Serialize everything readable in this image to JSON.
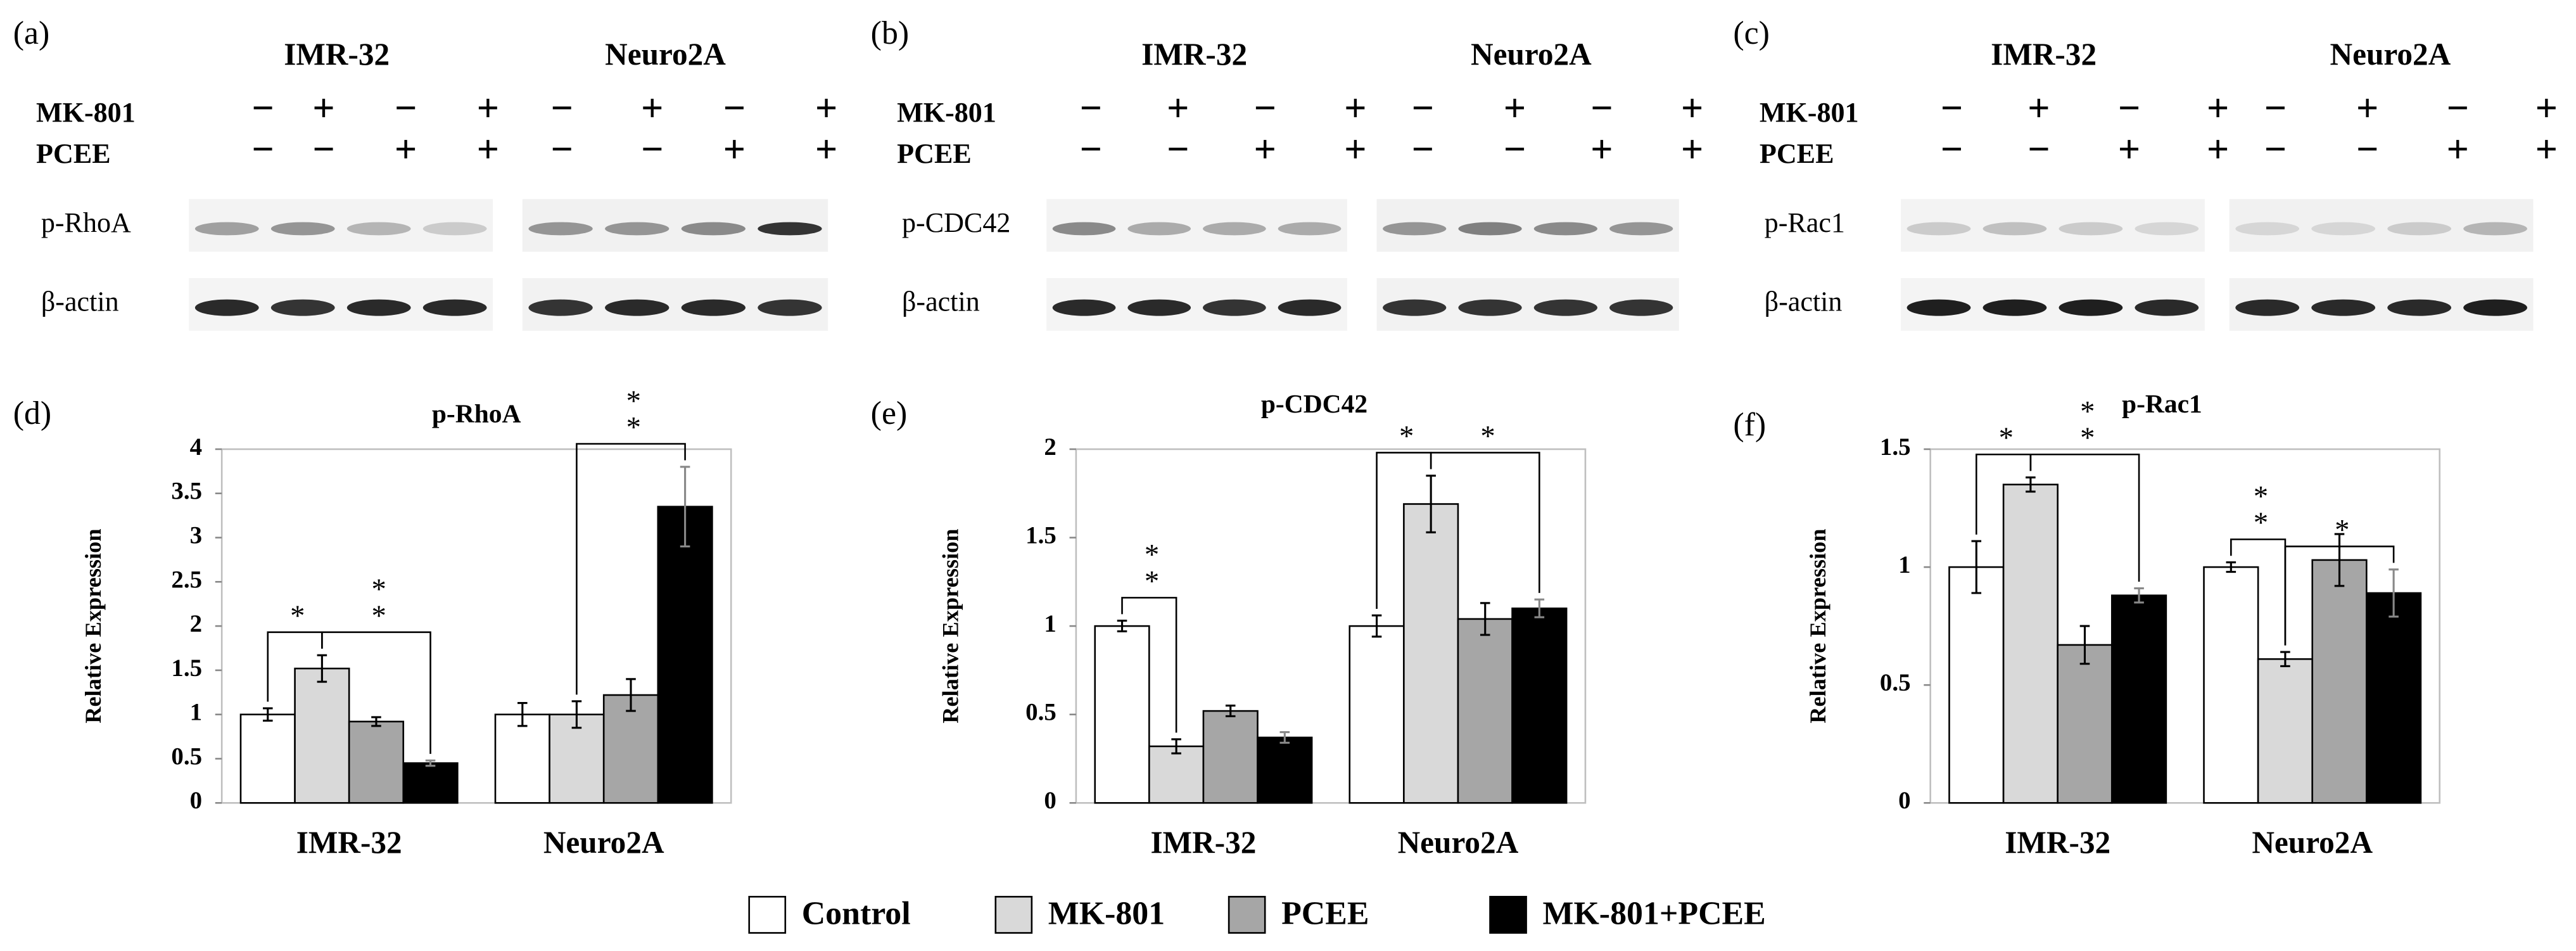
{
  "blots": [
    {
      "panel_label": "(a)",
      "cell_lines": [
        "IMR-32",
        "Neuro2A"
      ],
      "treatments": [
        {
          "label": "MK-801",
          "signs": [
            "−",
            "+",
            "−",
            "+",
            "−",
            "+",
            "−",
            "+"
          ]
        },
        {
          "label": "PCEE",
          "signs": [
            "−",
            "−",
            "+",
            "+",
            "−",
            "−",
            "+",
            "+"
          ]
        }
      ],
      "rows": [
        "p-RhoA",
        "β-actin"
      ]
    },
    {
      "panel_label": "(b)",
      "cell_lines": [
        "IMR-32",
        "Neuro2A"
      ],
      "treatments": [
        {
          "label": "MK-801",
          "signs": [
            "−",
            "+",
            "−",
            "+",
            "−",
            "+",
            "−",
            "+"
          ]
        },
        {
          "label": "PCEE",
          "signs": [
            "−",
            "−",
            "+",
            "+",
            "−",
            "−",
            "+",
            "+"
          ]
        }
      ],
      "rows": [
        "p-CDC42",
        "β-actin"
      ]
    },
    {
      "panel_label": "(c)",
      "cell_lines": [
        "IMR-32",
        "Neuro2A"
      ],
      "treatments": [
        {
          "label": "MK-801",
          "signs": [
            "−",
            "+",
            "−",
            "+",
            "−",
            "+",
            "−",
            "+"
          ]
        },
        {
          "label": "PCEE",
          "signs": [
            "−",
            "−",
            "+",
            "+",
            "−",
            "−",
            "+",
            "+"
          ]
        }
      ],
      "rows": [
        "p-Rac1",
        "β-actin"
      ]
    }
  ],
  "chart_data": [
    {
      "type": "bar",
      "panel_label": "(d)",
      "title": "p-RhoA",
      "y_label": "Relative Expression",
      "categories": [
        "IMR-32",
        "Neuro2A"
      ],
      "series": [
        {
          "values": [
            1.0,
            1.0
          ],
          "errors": [
            0.07,
            0.13
          ]
        },
        {
          "values": [
            1.52,
            1.0
          ],
          "errors": [
            0.15,
            0.15
          ]
        },
        {
          "values": [
            0.92,
            1.22
          ],
          "errors": [
            0.05,
            0.18
          ]
        },
        {
          "values": [
            0.45,
            3.35
          ],
          "errors": [
            0.03,
            0.45
          ]
        }
      ],
      "ylim": [
        0,
        4
      ],
      "yticks": [
        0,
        0.5,
        1,
        1.5,
        2,
        2.5,
        3,
        3.5,
        4
      ],
      "significance": [
        {
          "category": 0,
          "pair": [
            0,
            1
          ],
          "label": "*"
        },
        {
          "category": 0,
          "pair": [
            1,
            3
          ],
          "label": "**"
        },
        {
          "category": 1,
          "pair": [
            1,
            3
          ],
          "label": "**"
        }
      ]
    },
    {
      "type": "bar",
      "panel_label": "(e)",
      "title": "p-CDC42",
      "y_label": "Relative Expression",
      "categories": [
        "IMR-32",
        "Neuro2A"
      ],
      "series": [
        {
          "values": [
            1.0,
            1.0
          ],
          "errors": [
            0.03,
            0.06
          ]
        },
        {
          "values": [
            0.32,
            1.69
          ],
          "errors": [
            0.04,
            0.16
          ]
        },
        {
          "values": [
            0.52,
            1.04
          ],
          "errors": [
            0.03,
            0.09
          ]
        },
        {
          "values": [
            0.37,
            1.1
          ],
          "errors": [
            0.03,
            0.05
          ]
        }
      ],
      "ylim": [
        0,
        2
      ],
      "yticks": [
        0,
        0.5,
        1,
        1.5,
        2
      ],
      "significance": [
        {
          "category": 0,
          "pair": [
            0,
            1
          ],
          "label": "**"
        },
        {
          "category": 1,
          "pair": [
            0,
            1
          ],
          "label": "*"
        },
        {
          "category": 1,
          "pair": [
            1,
            3
          ],
          "label": "*"
        }
      ]
    },
    {
      "type": "bar",
      "panel_label": "(f)",
      "title": "p-Rac1",
      "y_label": "Relative Expression",
      "categories": [
        "IMR-32",
        "Neuro2A"
      ],
      "series": [
        {
          "values": [
            1.0,
            1.0
          ],
          "errors": [
            0.11,
            0.02
          ]
        },
        {
          "values": [
            1.35,
            0.61
          ],
          "errors": [
            0.03,
            0.03
          ]
        },
        {
          "values": [
            0.67,
            1.03
          ],
          "errors": [
            0.08,
            0.11
          ]
        },
        {
          "values": [
            0.88,
            0.89
          ],
          "errors": [
            0.03,
            0.1
          ]
        }
      ],
      "ylim": [
        0,
        1.5
      ],
      "yticks": [
        0,
        0.5,
        1,
        1.5
      ],
      "significance": [
        {
          "category": 0,
          "pair": [
            0,
            1
          ],
          "label": "*"
        },
        {
          "category": 0,
          "pair": [
            1,
            3
          ],
          "label": "**"
        },
        {
          "category": 1,
          "pair": [
            0,
            1
          ],
          "label": "**"
        },
        {
          "category": 1,
          "pair": [
            1,
            3
          ],
          "label": "*"
        }
      ]
    }
  ],
  "legend": [
    {
      "name": "Control",
      "color": "#ffffff"
    },
    {
      "name": "MK-801",
      "color": "#d9d9d9"
    },
    {
      "name": "PCEE",
      "color": "#a6a6a6"
    },
    {
      "name": "MK-801+PCEE",
      "color": "#000000"
    }
  ]
}
